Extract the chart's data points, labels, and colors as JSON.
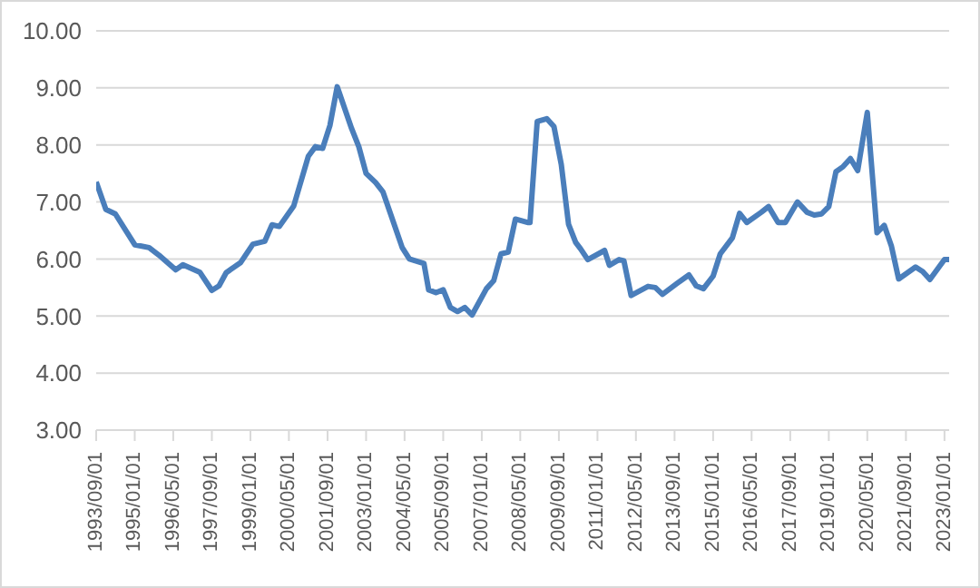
{
  "chart_data": {
    "type": "line",
    "x": [
      "1993-09",
      "1994-01",
      "1994-05",
      "1995-01",
      "1995-07",
      "1995-11",
      "1996-06",
      "1996-09",
      "1997-04",
      "1997-09",
      "1997-12",
      "1998-03",
      "1998-09",
      "1999-02",
      "1999-07",
      "1999-10",
      "2000-01",
      "2000-07",
      "2001-01",
      "2001-04",
      "2001-07",
      "2001-10",
      "2002-01",
      "2002-07",
      "2002-10",
      "2003-01",
      "2003-05",
      "2003-08",
      "2004-04",
      "2004-07",
      "2005-01",
      "2005-03",
      "2005-06",
      "2005-09",
      "2005-12",
      "2006-03",
      "2006-06",
      "2006-09",
      "2007-03",
      "2007-06",
      "2007-09",
      "2007-12",
      "2008-03",
      "2008-08",
      "2008-09",
      "2008-12",
      "2009-04",
      "2009-07",
      "2009-10",
      "2010-01",
      "2010-04",
      "2010-06",
      "2010-09",
      "2011-04",
      "2011-06",
      "2011-10",
      "2011-12",
      "2012-03",
      "2012-10",
      "2013-01",
      "2013-04",
      "2013-10",
      "2014-03",
      "2014-06",
      "2014-09",
      "2015-01",
      "2015-04",
      "2015-09",
      "2015-12",
      "2016-03",
      "2016-09",
      "2016-12",
      "2017-04",
      "2017-07",
      "2017-12",
      "2018-04",
      "2018-07",
      "2018-10",
      "2019-01",
      "2019-04",
      "2019-07",
      "2019-10",
      "2020-01",
      "2020-05",
      "2020-09",
      "2020-12",
      "2021-03",
      "2021-06",
      "2022-01",
      "2022-04",
      "2022-07",
      "2023-01",
      "2023-03"
    ],
    "series": [
      {
        "color": "#4a7ebb",
        "values": [
          7.35,
          6.87,
          6.79,
          6.25,
          6.2,
          6.07,
          5.81,
          5.9,
          5.77,
          5.45,
          5.53,
          5.76,
          5.94,
          6.26,
          6.31,
          6.6,
          6.57,
          6.93,
          7.8,
          7.97,
          7.94,
          8.34,
          9.02,
          8.29,
          7.97,
          7.5,
          7.34,
          7.18,
          6.2,
          6.0,
          5.92,
          5.46,
          5.41,
          5.46,
          5.15,
          5.08,
          5.15,
          5.02,
          5.48,
          5.62,
          6.09,
          6.12,
          6.7,
          6.64,
          6.64,
          8.41,
          8.46,
          8.32,
          7.66,
          6.61,
          6.29,
          6.18,
          5.99,
          6.15,
          5.89,
          5.99,
          5.97,
          5.36,
          5.52,
          5.5,
          5.38,
          5.57,
          5.72,
          5.53,
          5.48,
          5.7,
          6.09,
          6.37,
          6.8,
          6.64,
          6.82,
          6.92,
          6.64,
          6.64,
          7.0,
          6.82,
          6.77,
          6.79,
          6.92,
          7.53,
          7.62,
          7.76,
          7.55,
          8.57,
          6.46,
          6.59,
          6.23,
          5.65,
          5.86,
          5.78,
          5.64,
          5.99,
          5.99
        ]
      }
    ],
    "xlim": [
      "1993-09-01",
      "2023-03-01"
    ],
    "xticks": [
      {
        "value": "1993-09-01",
        "label": "1993/09/01"
      },
      {
        "value": "1995-01-01",
        "label": "1995/01/01"
      },
      {
        "value": "1996-05-01",
        "label": "1996/05/01"
      },
      {
        "value": "1997-09-01",
        "label": "1997/09/01"
      },
      {
        "value": "1999-01-01",
        "label": "1999/01/01"
      },
      {
        "value": "2000-05-01",
        "label": "2000/05/01"
      },
      {
        "value": "2001-09-01",
        "label": "2001/09/01"
      },
      {
        "value": "2003-01-01",
        "label": "2003/01/01"
      },
      {
        "value": "2004-05-01",
        "label": "2004/05/01"
      },
      {
        "value": "2005-09-01",
        "label": "2005/09/01"
      },
      {
        "value": "2007-01-01",
        "label": "2007/01/01"
      },
      {
        "value": "2008-05-01",
        "label": "2008/05/01"
      },
      {
        "value": "2009-09-01",
        "label": "2009/09/01"
      },
      {
        "value": "2011-01-01",
        "label": "2011/01/01"
      },
      {
        "value": "2012-05-01",
        "label": "2012/05/01"
      },
      {
        "value": "2013-09-01",
        "label": "2013/09/01"
      },
      {
        "value": "2015-01-01",
        "label": "2015/01/01"
      },
      {
        "value": "2016-05-01",
        "label": "2016/05/01"
      },
      {
        "value": "2017-09-01",
        "label": "2017/09/01"
      },
      {
        "value": "2019-01-01",
        "label": "2019/01/01"
      },
      {
        "value": "2020-05-01",
        "label": "2020/05/01"
      },
      {
        "value": "2021-09-01",
        "label": "2021/09/01"
      },
      {
        "value": "2023-01-01",
        "label": "2023/01/01"
      }
    ],
    "ylim": [
      3,
      10
    ],
    "yticks": [
      {
        "value": 3,
        "label": "3.00"
      },
      {
        "value": 4,
        "label": "4.00"
      },
      {
        "value": 5,
        "label": "5.00"
      },
      {
        "value": 6,
        "label": "6.00"
      },
      {
        "value": 7,
        "label": "7.00"
      },
      {
        "value": 8,
        "label": "8.00"
      },
      {
        "value": 9,
        "label": "9.00"
      },
      {
        "value": 10,
        "label": "10.00"
      }
    ],
    "grid": "y",
    "marker": "none",
    "line_style": "solid"
  }
}
